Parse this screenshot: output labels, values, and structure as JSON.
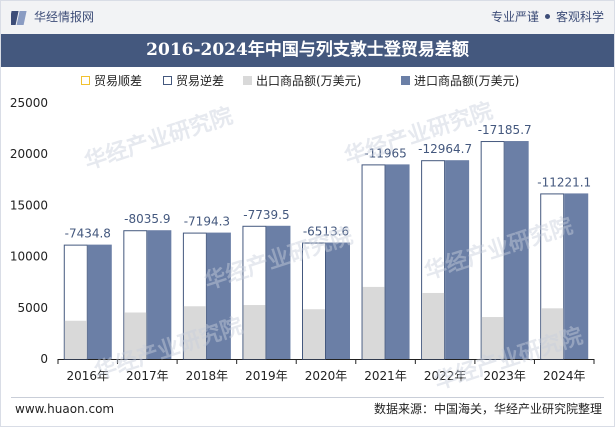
{
  "header": {
    "brand_name": "华经情报网",
    "slogan_left": "专业严谨",
    "slogan_right": "客观科学",
    "logo_icon": "huajing-logo-icon"
  },
  "title": "2016-2024年中国与列支敦士登贸易差额",
  "legend": [
    {
      "label": "贸易顺差",
      "color": "#f2c230"
    },
    {
      "label": "贸易逆差",
      "color": "#44587e"
    },
    {
      "label": "出口商品额(万美元)",
      "color": "#d9d9d9"
    },
    {
      "label": "进口商品额(万美元)",
      "color": "#6b7fa6"
    }
  ],
  "watermark": "华经产业研究院",
  "chart_data": {
    "type": "bar",
    "categories": [
      "2016年",
      "2017年",
      "2018年",
      "2019年",
      "2020年",
      "2021年",
      "2022年",
      "2023年",
      "2024年"
    ],
    "ylim": [
      0,
      25000
    ],
    "yticks": [
      0,
      5000,
      10000,
      15000,
      20000,
      25000
    ],
    "series": [
      {
        "name": "贸易顺差",
        "values": [
          null,
          null,
          null,
          null,
          null,
          null,
          null,
          null,
          null
        ]
      },
      {
        "name": "贸易逆差",
        "values": [
          -7434.8,
          -8035.9,
          -7194.3,
          -7739.5,
          -6513.6,
          -11965,
          -12964.7,
          -17185.7,
          -11221.1
        ]
      },
      {
        "name": "出口商品额(万美元)",
        "values": [
          3735,
          4540,
          5150,
          5270,
          4860,
          7040,
          6450,
          4100,
          4950
        ]
      },
      {
        "name": "进口商品额(万美元)",
        "values": [
          11169.8,
          12575.9,
          12344.3,
          13009.5,
          11373.6,
          19005,
          19414.7,
          21285.7,
          16171.1
        ]
      }
    ],
    "data_labels": [
      "-7434.8",
      "-8035.9",
      "-7194.3",
      "-7739.5",
      "-6513.6",
      "-11965",
      "-12964.7",
      "-17185.7",
      "-11221.1"
    ],
    "colors": {
      "deficit_border": "#44587e",
      "export": "#d9d9d9",
      "import": "#6b7fa6",
      "label": "#44587e"
    }
  },
  "footer": {
    "url": "www.huaon.com",
    "source": "数据来源：中国海关，华经产业研究院整理"
  }
}
